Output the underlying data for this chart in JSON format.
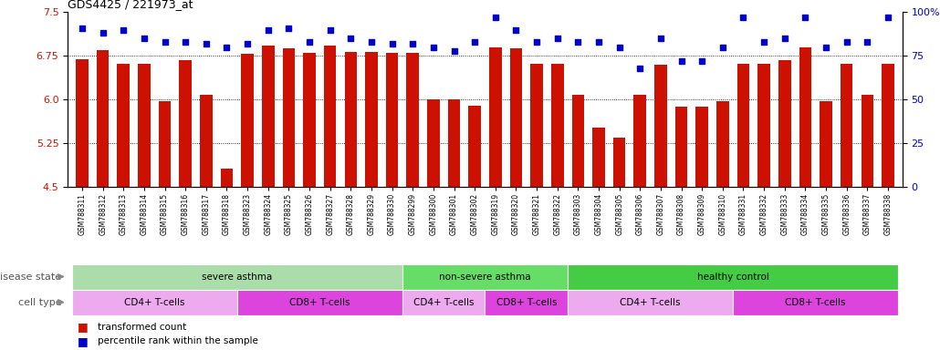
{
  "title": "GDS4425 / 221973_at",
  "samples": [
    "GSM788311",
    "GSM788312",
    "GSM788313",
    "GSM788314",
    "GSM788315",
    "GSM788316",
    "GSM788317",
    "GSM788318",
    "GSM788323",
    "GSM788324",
    "GSM788325",
    "GSM788326",
    "GSM788327",
    "GSM788328",
    "GSM788329",
    "GSM788330",
    "GSM788299",
    "GSM788300",
    "GSM788301",
    "GSM788302",
    "GSM788319",
    "GSM788320",
    "GSM788321",
    "GSM788322",
    "GSM788303",
    "GSM788304",
    "GSM788305",
    "GSM788306",
    "GSM788307",
    "GSM788308",
    "GSM788309",
    "GSM788310",
    "GSM788331",
    "GSM788332",
    "GSM788333",
    "GSM788334",
    "GSM788335",
    "GSM788336",
    "GSM788337",
    "GSM788338"
  ],
  "bar_values": [
    6.7,
    6.85,
    6.62,
    6.62,
    5.98,
    6.68,
    6.08,
    4.82,
    6.78,
    6.93,
    6.88,
    6.8,
    6.93,
    6.82,
    6.82,
    6.8,
    6.8,
    6.0,
    6.0,
    5.9,
    6.9,
    6.88,
    6.62,
    6.62,
    6.08,
    5.52,
    5.35,
    6.08,
    6.6,
    5.88,
    5.88,
    5.98,
    6.62,
    6.62,
    6.68,
    6.9,
    5.98,
    6.62,
    6.08,
    6.62
  ],
  "percentile_values": [
    91,
    88,
    90,
    85,
    83,
    83,
    82,
    80,
    82,
    90,
    91,
    83,
    90,
    85,
    83,
    82,
    82,
    80,
    78,
    83,
    97,
    90,
    83,
    85,
    83,
    83,
    80,
    68,
    85,
    72,
    72,
    80,
    97,
    83,
    85,
    97,
    80,
    83,
    83,
    97
  ],
  "ylim_left": [
    4.5,
    7.5
  ],
  "ylim_right": [
    0,
    100
  ],
  "yticks_left": [
    4.5,
    5.25,
    6.0,
    6.75,
    7.5
  ],
  "yticks_right": [
    0,
    25,
    50,
    75,
    100
  ],
  "bar_color": "#CC1100",
  "dot_color": "#0000CC",
  "background_color": "#ffffff",
  "disease_boundaries": [
    {
      "label": "severe asthma",
      "start": 0,
      "end": 16,
      "color": "#AADDAA"
    },
    {
      "label": "non-severe asthma",
      "start": 16,
      "end": 24,
      "color": "#66DD66"
    },
    {
      "label": "healthy control",
      "start": 24,
      "end": 40,
      "color": "#44CC44"
    }
  ],
  "cell_boundaries": [
    {
      "label": "CD4+ T-cells",
      "start": 0,
      "end": 8,
      "color": "#EEAAEE"
    },
    {
      "label": "CD8+ T-cells",
      "start": 8,
      "end": 16,
      "color": "#DD44DD"
    },
    {
      "label": "CD4+ T-cells",
      "start": 16,
      "end": 20,
      "color": "#EEAAEE"
    },
    {
      "label": "CD8+ T-cells",
      "start": 20,
      "end": 24,
      "color": "#DD44DD"
    },
    {
      "label": "CD4+ T-cells",
      "start": 24,
      "end": 32,
      "color": "#EEAAEE"
    },
    {
      "label": "CD8+ T-cells",
      "start": 32,
      "end": 40,
      "color": "#DD44DD"
    }
  ],
  "legend_items": [
    {
      "label": "transformed count",
      "color": "#CC1100"
    },
    {
      "label": "percentile rank within the sample",
      "color": "#0000CC"
    }
  ],
  "disease_label": "disease state",
  "cell_label": "cell type"
}
